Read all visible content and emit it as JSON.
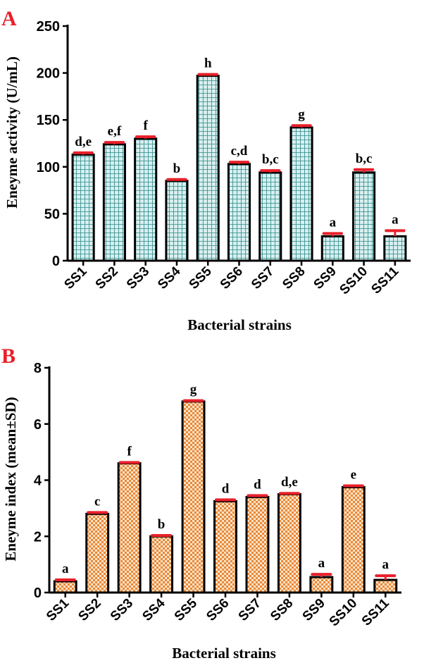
{
  "chart_data": [
    {
      "panel": "A",
      "type": "bar",
      "categories": [
        "SS1",
        "SS2",
        "SS3",
        "SS4",
        "SS5",
        "SS6",
        "SS7",
        "SS8",
        "SS9",
        "SS10",
        "SS11"
      ],
      "values": [
        113,
        124,
        130,
        85,
        197,
        103,
        94,
        142,
        26,
        94,
        26
      ],
      "errors": [
        2,
        2,
        2,
        1.5,
        1.5,
        2,
        2,
        2,
        3,
        3,
        6
      ],
      "annotations": [
        "d,e",
        "e,f",
        "f",
        "b",
        "h",
        "c,d",
        "b,c",
        "g",
        "a",
        "b,c",
        "a"
      ],
      "xlabel": "Bacterial strains",
      "ylabel": "Eneyme activity (U/mL)",
      "ylim": [
        0,
        250
      ],
      "yticks": [
        "0",
        "50",
        "100",
        "150",
        "200",
        "250"
      ],
      "bar_pattern": "grid",
      "colors": {
        "bar_fill": "#d9efef",
        "bar_pattern": "#2a8a8a",
        "error": "#e8202a",
        "panel_letter": "#e8202a"
      }
    },
    {
      "panel": "B",
      "type": "bar",
      "categories": [
        "SS1",
        "SS2",
        "SS3",
        "SS4",
        "SS5",
        "SS6",
        "SS7",
        "SS8",
        "SS9",
        "SS10",
        "SS11"
      ],
      "values": [
        0.4,
        2.8,
        4.6,
        2.0,
        6.8,
        3.25,
        3.4,
        3.5,
        0.55,
        3.75,
        0.45
      ],
      "errors": [
        0.05,
        0.05,
        0.03,
        0.03,
        0.03,
        0.05,
        0.05,
        0.03,
        0.1,
        0.05,
        0.15
      ],
      "annotations": [
        "a",
        "c",
        "f",
        "b",
        "g",
        "d",
        "d",
        "d,e",
        "a",
        "e",
        "a"
      ],
      "xlabel": "Bacterial strains",
      "ylabel": "Eneyme index (mean±SD)",
      "ylim": [
        0,
        8
      ],
      "yticks": [
        "0",
        "2",
        "4",
        "6",
        "8"
      ],
      "bar_pattern": "checker",
      "colors": {
        "bar_fill": "#fbe3c8",
        "bar_pattern": "#e8893a",
        "error": "#e8202a",
        "panel_letter": "#e8202a"
      }
    }
  ]
}
